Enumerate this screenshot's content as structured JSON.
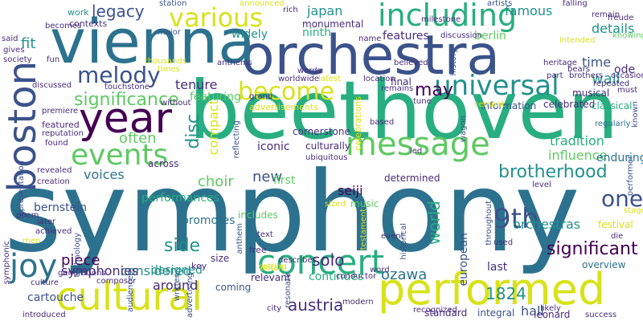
{
  "palette": {
    "yellow": "#d8e219",
    "green": "#5ec962",
    "teal": "#21918c",
    "lightgreen": "#addc30",
    "blue": "#3b528b",
    "purple": "#440154",
    "darkpurple": "#472d7b",
    "lightteal": "#2c728e",
    "mint": "#28ae80"
  },
  "words": [
    "symphony",
    "beethoven",
    "orchestra",
    "vienna",
    "year",
    "boston",
    "concert",
    "performed",
    "joy",
    "cultural",
    "including",
    "various",
    "universal",
    "events",
    "message",
    "melody",
    "become",
    "significance",
    "may",
    "often",
    "9th",
    "brotherhood",
    "one",
    "significant",
    "austria",
    "ozawa",
    "1824",
    "piece",
    "choir",
    "seiji",
    "disc",
    "compact",
    "new",
    "legacy",
    "japan",
    "fit",
    "famous",
    "wall",
    "ode",
    "details",
    "features",
    "berlin",
    "widely",
    "ninth",
    "time",
    "tradition",
    "influence",
    "enduring",
    "performances",
    "voices",
    "tenure",
    "featuring",
    "side",
    "considered",
    "around",
    "continues",
    "solo",
    "world",
    "european",
    "orchestras",
    "symphonies",
    "bernstein",
    "designed",
    "coming",
    "relevant",
    "hall",
    "leonard",
    "cartouche",
    "last",
    "overview",
    "festival",
    "celebrated",
    "information",
    "classical",
    "musical",
    "regularly",
    "station",
    "work",
    "contexts",
    "major",
    "rich",
    "milestone",
    "artists",
    "falling",
    "remain",
    "knowing",
    "freude",
    "said",
    "gives",
    "society",
    "fun",
    "discussed",
    "premiere",
    "featured",
    "reputation",
    "found",
    "revealed",
    "creation",
    "representation",
    "poem",
    "later",
    "achieved",
    "men",
    "symphonic",
    "culture",
    "introduced",
    "composer",
    "audiences",
    "generations",
    "technology",
    "written",
    "advertising",
    "free",
    "key",
    "size",
    "celebrations",
    "advertisements",
    "iconic",
    "culturally",
    "cornerstone",
    "determined",
    "first",
    "promotes",
    "includes",
    "music",
    "anthem",
    "text",
    "detail",
    "sized",
    "testament",
    "event",
    "word",
    "historical",
    "conductor",
    "describes",
    "setting",
    "city",
    "resonate",
    "modern",
    "recognized",
    "standard",
    "integral",
    "success",
    "likely",
    "used",
    "throughout",
    "wagon",
    "led",
    "across",
    "monumental",
    "name",
    "intended",
    "heritage",
    "bears",
    "brothers",
    "part",
    "occasions",
    "must",
    "known",
    "repeated",
    "announced",
    "thousands",
    "times",
    "anthems",
    "worldwide",
    "words",
    "latest",
    "believed",
    "location",
    "remains",
    "final",
    "tune",
    "cement",
    "without",
    "reflecting",
    "grand",
    "touchstone",
    "discussion",
    "history",
    "based",
    "ubiquitous",
    "level",
    "performer",
    "becomes",
    "stage",
    "die",
    "melody",
    "must",
    "words"
  ]
}
